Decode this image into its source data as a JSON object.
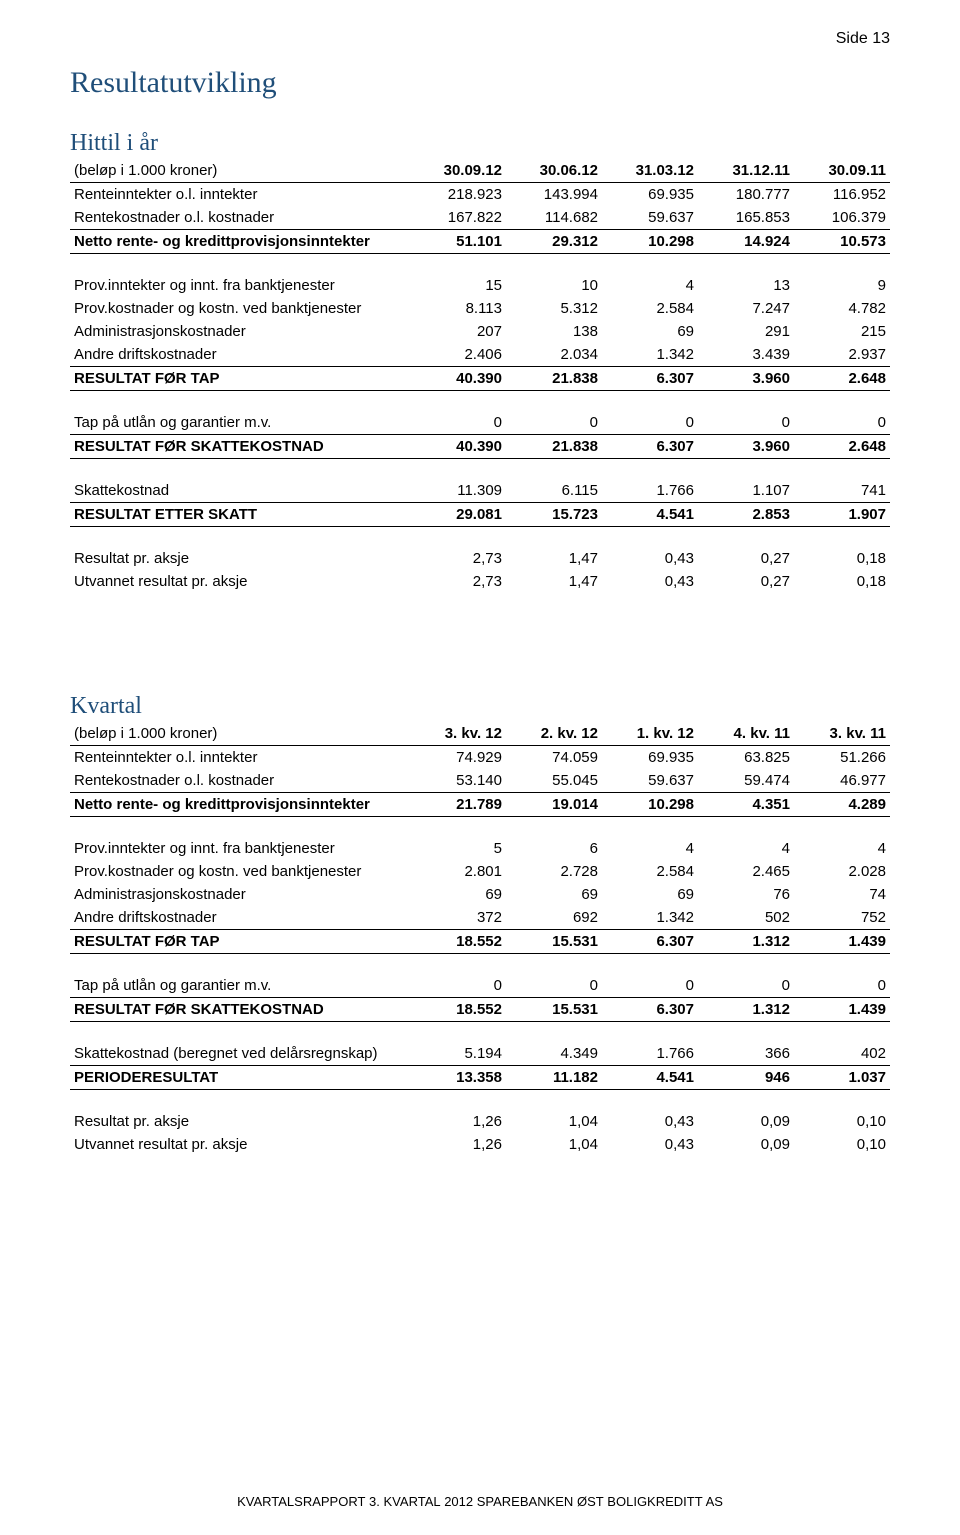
{
  "page_label": "Side 13",
  "section_title": "Resultatutvikling",
  "tables": {
    "ytd": {
      "subsection_title": "Hittil i år",
      "unit_label": "(beløp i 1.000 kroner)",
      "headers": [
        "30.09.12",
        "30.06.12",
        "31.03.12",
        "31.12.11",
        "30.09.11"
      ],
      "rows": [
        {
          "label": "Renteinntekter o.l. inntekter",
          "vals": [
            "218.923",
            "143.994",
            "69.935",
            "180.777",
            "116.952"
          ],
          "style": "plain"
        },
        {
          "label": "Rentekostnader o.l. kostnader",
          "vals": [
            "167.822",
            "114.682",
            "59.637",
            "165.853",
            "106.379"
          ],
          "style": "line-under"
        },
        {
          "label": "Netto rente- og kredittprovisjonsinntekter",
          "vals": [
            "51.101",
            "29.312",
            "10.298",
            "14.924",
            "10.573"
          ],
          "style": "bold line-under"
        },
        {
          "spacer": true
        },
        {
          "label": "Prov.inntekter og innt. fra banktjenester",
          "vals": [
            "15",
            "10",
            "4",
            "13",
            "9"
          ],
          "style": "plain"
        },
        {
          "label": "Prov.kostnader og kostn. ved banktjenester",
          "vals": [
            "8.113",
            "5.312",
            "2.584",
            "7.247",
            "4.782"
          ],
          "style": "plain"
        },
        {
          "label": "Administrasjonskostnader",
          "vals": [
            "207",
            "138",
            "69",
            "291",
            "215"
          ],
          "style": "plain"
        },
        {
          "label": "Andre driftskostnader",
          "vals": [
            "2.406",
            "2.034",
            "1.342",
            "3.439",
            "2.937"
          ],
          "style": "line-under"
        },
        {
          "label": "RESULTAT FØR TAP",
          "vals": [
            "40.390",
            "21.838",
            "6.307",
            "3.960",
            "2.648"
          ],
          "style": "bold line-under"
        },
        {
          "spacer": true
        },
        {
          "label": "Tap på utlån og garantier m.v.",
          "vals": [
            "0",
            "0",
            "0",
            "0",
            "0"
          ],
          "style": "line-under"
        },
        {
          "label": "RESULTAT FØR SKATTEKOSTNAD",
          "vals": [
            "40.390",
            "21.838",
            "6.307",
            "3.960",
            "2.648"
          ],
          "style": "bold line-under"
        },
        {
          "spacer": true
        },
        {
          "label": "Skattekostnad",
          "vals": [
            "11.309",
            "6.115",
            "1.766",
            "1.107",
            "741"
          ],
          "style": "line-under"
        },
        {
          "label": "RESULTAT ETTER SKATT",
          "vals": [
            "29.081",
            "15.723",
            "4.541",
            "2.853",
            "1.907"
          ],
          "style": "bold line-under"
        },
        {
          "spacer": true
        },
        {
          "label": "Resultat pr. aksje",
          "vals": [
            "2,73",
            "1,47",
            "0,43",
            "0,27",
            "0,18"
          ],
          "style": "plain"
        },
        {
          "label": "Utvannet resultat pr. aksje",
          "vals": [
            "2,73",
            "1,47",
            "0,43",
            "0,27",
            "0,18"
          ],
          "style": "plain"
        }
      ]
    },
    "qtr": {
      "subsection_title": "Kvartal",
      "unit_label": "(beløp i 1.000 kroner)",
      "headers": [
        "3. kv. 12",
        "2. kv. 12",
        "1. kv. 12",
        "4. kv. 11",
        "3. kv. 11"
      ],
      "rows": [
        {
          "label": "Renteinntekter o.l. inntekter",
          "vals": [
            "74.929",
            "74.059",
            "69.935",
            "63.825",
            "51.266"
          ],
          "style": "plain"
        },
        {
          "label": "Rentekostnader o.l. kostnader",
          "vals": [
            "53.140",
            "55.045",
            "59.637",
            "59.474",
            "46.977"
          ],
          "style": "line-under"
        },
        {
          "label": "Netto rente- og kredittprovisjonsinntekter",
          "vals": [
            "21.789",
            "19.014",
            "10.298",
            "4.351",
            "4.289"
          ],
          "style": "bold line-under"
        },
        {
          "spacer": true
        },
        {
          "label": "Prov.inntekter og innt. fra banktjenester",
          "vals": [
            "5",
            "6",
            "4",
            "4",
            "4"
          ],
          "style": "plain"
        },
        {
          "label": "Prov.kostnader og kostn. ved banktjenester",
          "vals": [
            "2.801",
            "2.728",
            "2.584",
            "2.465",
            "2.028"
          ],
          "style": "plain"
        },
        {
          "label": "Administrasjonskostnader",
          "vals": [
            "69",
            "69",
            "69",
            "76",
            "74"
          ],
          "style": "plain"
        },
        {
          "label": "Andre driftskostnader",
          "vals": [
            "372",
            "692",
            "1.342",
            "502",
            "752"
          ],
          "style": "line-under"
        },
        {
          "label": "RESULTAT FØR TAP",
          "vals": [
            "18.552",
            "15.531",
            "6.307",
            "1.312",
            "1.439"
          ],
          "style": "bold line-under"
        },
        {
          "spacer": true
        },
        {
          "label": "Tap på utlån og garantier m.v.",
          "vals": [
            "0",
            "0",
            "0",
            "0",
            "0"
          ],
          "style": "line-under"
        },
        {
          "label": "RESULTAT FØR SKATTEKOSTNAD",
          "vals": [
            "18.552",
            "15.531",
            "6.307",
            "1.312",
            "1.439"
          ],
          "style": "bold line-under"
        },
        {
          "spacer": true
        },
        {
          "label": "Skattekostnad (beregnet ved delårsregnskap)",
          "vals": [
            "5.194",
            "4.349",
            "1.766",
            "366",
            "402"
          ],
          "style": "line-under"
        },
        {
          "label": "PERIODERESULTAT",
          "vals": [
            "13.358",
            "11.182",
            "4.541",
            "946",
            "1.037"
          ],
          "style": "bold line-under"
        },
        {
          "spacer": true
        },
        {
          "label": "Resultat pr. aksje",
          "vals": [
            "1,26",
            "1,04",
            "0,43",
            "0,09",
            "0,10"
          ],
          "style": "plain"
        },
        {
          "label": "Utvannet resultat pr. aksje",
          "vals": [
            "1,26",
            "1,04",
            "0,43",
            "0,09",
            "0,10"
          ],
          "style": "plain"
        }
      ]
    }
  },
  "footer": {
    "left": "K",
    "leftsc": "VARTALSRAPPORT",
    "mid": " 3. ",
    "midsc": "KVARTAL",
    "mid2": " 2012 S",
    "mid2sc": "PAREBANKEN",
    "right1": " Ø",
    "right1sc": "ST",
    "right2": " B",
    "right2sc": "OLIGKREDITT",
    "tail": " AS"
  },
  "colors": {
    "heading": "#1f4e79",
    "text": "#000000",
    "background": "#ffffff",
    "rule": "#000000"
  }
}
